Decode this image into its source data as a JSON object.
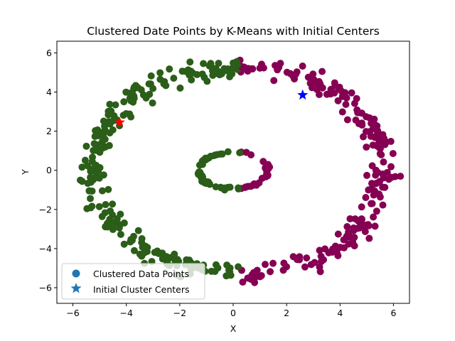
{
  "chart_data": {
    "type": "scatter",
    "title": "Clustered Date Points by K-Means with Initial Centers",
    "xlabel": "X",
    "ylabel": "Y",
    "xlim": [
      -6.6,
      6.6
    ],
    "ylim": [
      -6.8,
      6.6
    ],
    "xticks": [
      -6,
      -4,
      -2,
      0,
      2,
      4,
      6
    ],
    "yticks": [
      -6,
      -4,
      -2,
      0,
      2,
      4,
      6
    ],
    "grid": false,
    "legend_position": "lower-left",
    "legend": [
      {
        "label": "Clustered Data Points",
        "marker": "circle",
        "color": "#1f77b4"
      },
      {
        "label": "Initial Cluster Centers",
        "marker": "star",
        "color": "#1f77b4"
      }
    ],
    "cluster_colors": {
      "left": "#2b5e19",
      "right": "#850053"
    },
    "data_sampling": {
      "outer_ring": {
        "center": [
          0.2,
          0.0
        ],
        "rx": 5.5,
        "ry": 5.25,
        "noise": 0.45,
        "count": 440
      },
      "inner_ring": {
        "center": [
          0.0,
          0.0
        ],
        "rx": 1.3,
        "ry": 0.95,
        "noise": 0.08,
        "count": 75
      },
      "split_x": 0.25
    },
    "centers": [
      {
        "x": -4.25,
        "y": 2.45,
        "color": "#ff0000"
      },
      {
        "x": 2.6,
        "y": 3.85,
        "color": "#0000ff"
      }
    ]
  }
}
